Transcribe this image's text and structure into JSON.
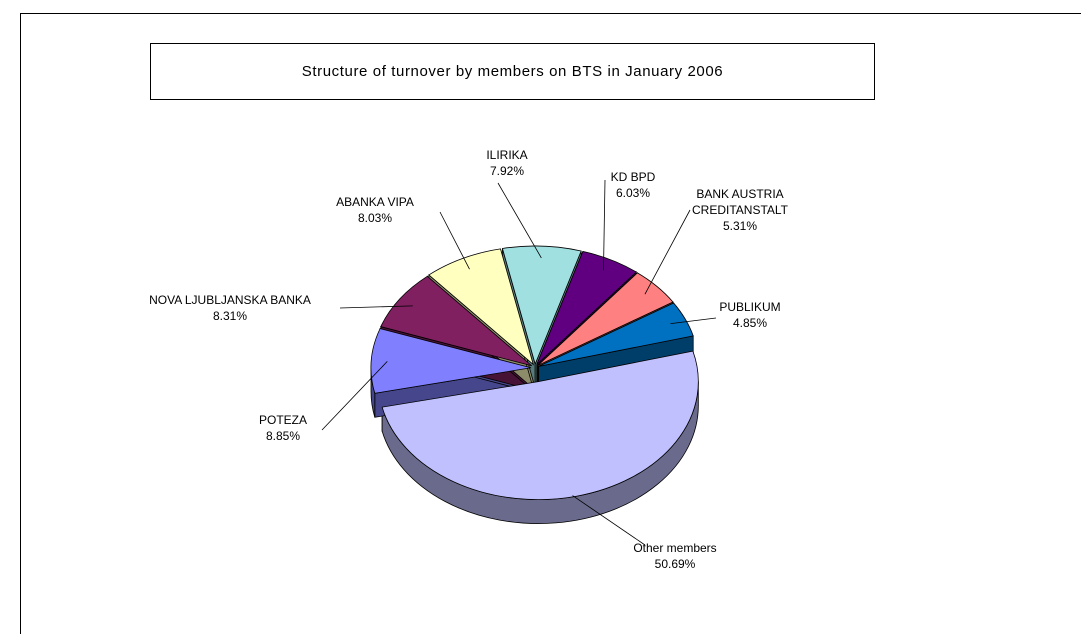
{
  "chart_data": {
    "type": "pie",
    "title": "Structure of turnover by members on BTS in January 2006",
    "categories": [
      "Other members",
      "POTEZA",
      "NOVA LJUBLJANSKA BANKA",
      "ABANKA VIPA",
      "ILIRIKA",
      "KD BPD",
      "BANK AUSTRIA\nCREDITANSTALT",
      "PUBLIKUM"
    ],
    "values": [
      50.69,
      8.85,
      8.31,
      8.03,
      7.92,
      6.03,
      5.31,
      4.85
    ],
    "value_labels": [
      "50.69%",
      "8.85%",
      "8.31%",
      "8.03%",
      "7.92%",
      "6.03%",
      "5.31%",
      "4.85%"
    ],
    "colors": [
      "#c0c0ff",
      "#8080ff",
      "#802060",
      "#ffffc0",
      "#a0e0e0",
      "#600080",
      "#ff8080",
      "#0070c0"
    ]
  }
}
